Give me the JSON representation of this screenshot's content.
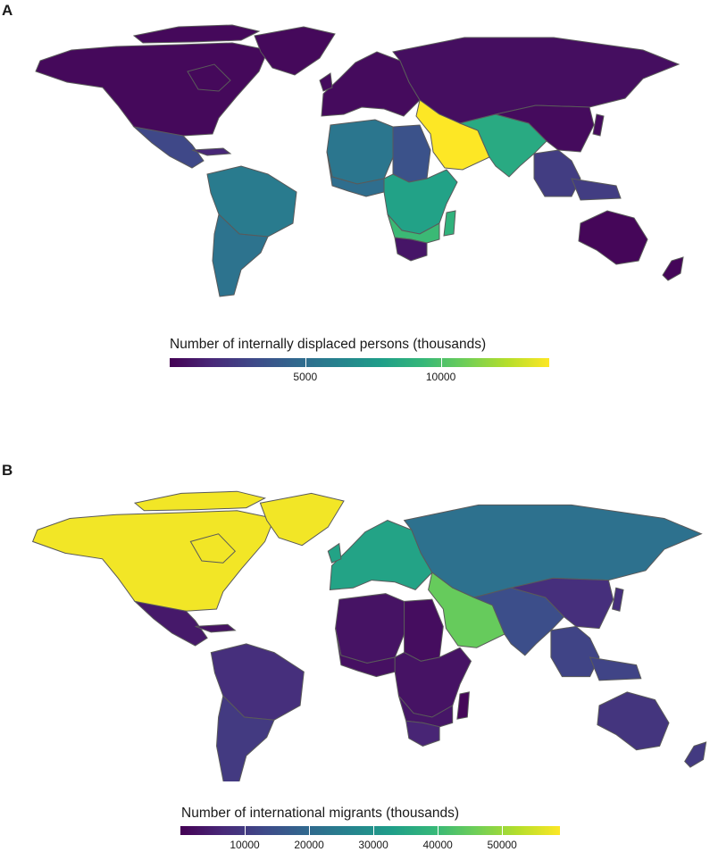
{
  "panels": [
    {
      "label": "A",
      "legend_title": "Number of internally displaced persons (thousands)",
      "scale": {
        "min": 0,
        "max": 14000,
        "ticks": [
          "5000",
          "10000"
        ],
        "tick_values": [
          5000,
          10000
        ]
      },
      "regions": [
        {
          "name": "North America",
          "value": 300
        },
        {
          "name": "Greenland",
          "value": 300
        },
        {
          "name": "Mexico & Central America",
          "value": 3000
        },
        {
          "name": "Caribbean",
          "value": 1500
        },
        {
          "name": "South America",
          "value": 5800
        },
        {
          "name": "Southern Cone",
          "value": 5300
        },
        {
          "name": "Europe",
          "value": 400
        },
        {
          "name": "Russia & Central Asia",
          "value": 500
        },
        {
          "name": "North Africa",
          "value": 5500
        },
        {
          "name": "Egypt-Sudan",
          "value": 3500
        },
        {
          "name": "West Africa",
          "value": 5000
        },
        {
          "name": "Central & East Africa",
          "value": 8000
        },
        {
          "name": "Southern Africa",
          "value": 9500
        },
        {
          "name": "South Africa",
          "value": 800
        },
        {
          "name": "Madagascar",
          "value": 9000
        },
        {
          "name": "Middle East",
          "value": 14000
        },
        {
          "name": "South Asia",
          "value": 8500
        },
        {
          "name": "East Asia",
          "value": 400
        },
        {
          "name": "Southeast Asia",
          "value": 2500
        },
        {
          "name": "Australia",
          "value": 200
        },
        {
          "name": "New Zealand",
          "value": 200
        }
      ]
    },
    {
      "label": "B",
      "legend_title": "Number of international migrants (thousands)",
      "scale": {
        "min": 0,
        "max": 59000,
        "ticks": [
          "10000",
          "20000",
          "30000",
          "40000",
          "50000"
        ],
        "tick_values": [
          10000,
          20000,
          30000,
          40000,
          50000
        ]
      },
      "regions": [
        {
          "name": "North America",
          "value": 58000
        },
        {
          "name": "Greenland",
          "value": 58000
        },
        {
          "name": "Mexico & Central America",
          "value": 4000
        },
        {
          "name": "Caribbean",
          "value": 3000
        },
        {
          "name": "South America",
          "value": 8000
        },
        {
          "name": "Southern Cone",
          "value": 10000
        },
        {
          "name": "Europe",
          "value": 34000
        },
        {
          "name": "Russia & Central Asia",
          "value": 22000
        },
        {
          "name": "North Africa",
          "value": 3000
        },
        {
          "name": "Egypt-Sudan",
          "value": 2000
        },
        {
          "name": "West Africa",
          "value": 2500
        },
        {
          "name": "Central & East Africa",
          "value": 3000
        },
        {
          "name": "Southern Africa",
          "value": 3500
        },
        {
          "name": "South Africa",
          "value": 6000
        },
        {
          "name": "Madagascar",
          "value": 1000
        },
        {
          "name": "Middle East",
          "value": 45000
        },
        {
          "name": "South Asia",
          "value": 14000
        },
        {
          "name": "East Asia",
          "value": 8000
        },
        {
          "name": "Southeast Asia",
          "value": 12000
        },
        {
          "name": "Australia",
          "value": 9000
        },
        {
          "name": "New Zealand",
          "value": 10000
        }
      ]
    }
  ],
  "palette": [
    "#440154",
    "#482878",
    "#3e4a89",
    "#31688e",
    "#26828e",
    "#1f9e89",
    "#35b779",
    "#6ece58",
    "#b5de2b",
    "#fde725"
  ],
  "border_color": "#5a5a5a"
}
